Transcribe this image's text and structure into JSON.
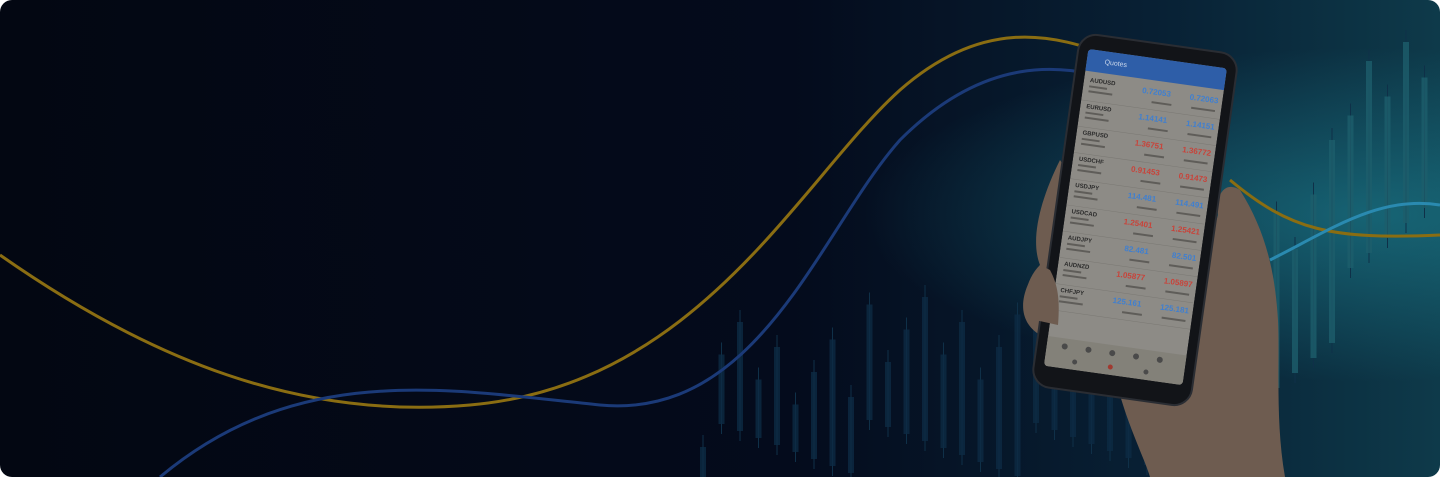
{
  "screen": {
    "title": "Quotes",
    "rows": [
      {
        "symbol": "AUDUSD",
        "bid": "0.72053",
        "ask": "0.72063",
        "color": "#3f7fd0"
      },
      {
        "symbol": "EURUSD",
        "bid": "1.14141",
        "ask": "1.14151",
        "color": "#3f7fd0"
      },
      {
        "symbol": "GBPUSD",
        "bid": "1.36751",
        "ask": "1.36772",
        "color": "#c8433a"
      },
      {
        "symbol": "USDCHF",
        "bid": "0.91453",
        "ask": "0.91473",
        "color": "#c8433a"
      },
      {
        "symbol": "USDJPY",
        "bid": "114.481",
        "ask": "114.491",
        "color": "#3f7fd0"
      },
      {
        "symbol": "USDCAD",
        "bid": "1.25401",
        "ask": "1.25421",
        "color": "#c8433a"
      },
      {
        "symbol": "AUDJPY",
        "bid": "82.481",
        "ask": "82.501",
        "color": "#3f7fd0"
      },
      {
        "symbol": "AUDNZD",
        "bid": "1.05877",
        "ask": "1.05897",
        "color": "#c8433a"
      },
      {
        "symbol": "CHFJPY",
        "bid": "125.161",
        "ask": "125.181",
        "color": "#3f7fd0"
      }
    ]
  }
}
